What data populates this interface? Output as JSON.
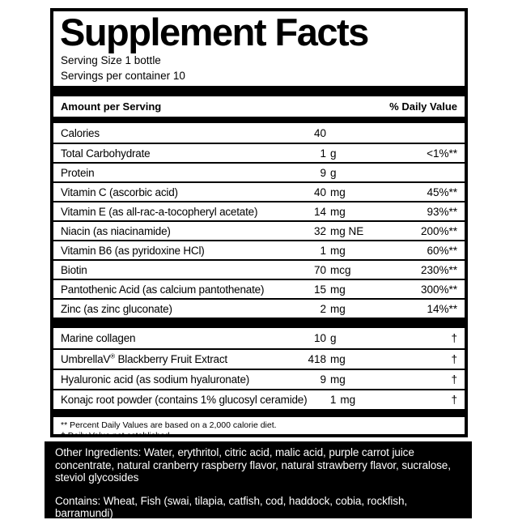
{
  "label": {
    "title": "Supplement Facts",
    "serving_size": "Serving Size 1 bottle",
    "servings_per_container": "Servings per container 10",
    "header": {
      "amount_col": "Amount per Serving",
      "dv_col": "% Daily Value"
    },
    "main_rows": [
      {
        "name": "Calories",
        "amount": "40",
        "unit": "",
        "dv": ""
      },
      {
        "name": "Total Carbohydrate",
        "amount": "1",
        "unit": "g",
        "dv": "<1%**"
      },
      {
        "name": "Protein",
        "amount": "9",
        "unit": "g",
        "dv": ""
      },
      {
        "name": "Vitamin C (ascorbic acid)",
        "amount": "40",
        "unit": "mg",
        "dv": "45%**"
      },
      {
        "name": "Vitamin E (as all-rac-a-tocopheryl acetate)",
        "amount": "14",
        "unit": "mg",
        "dv": "93%**"
      },
      {
        "name": "Niacin (as niacinamide)",
        "amount": "32",
        "unit": "mg NE",
        "dv": "200%**"
      },
      {
        "name": "Vitamin B6 (as pyridoxine HCl)",
        "amount": "1",
        "unit": "mg",
        "dv": "60%**"
      },
      {
        "name": "Biotin",
        "amount": "70",
        "unit": "mcg",
        "dv": "230%**"
      },
      {
        "name": "Pantothenic Acid (as calcium pantothenate)",
        "amount": "15",
        "unit": "mg",
        "dv": "300%**"
      },
      {
        "name": "Zinc (as zinc gluconate)",
        "amount": "2",
        "unit": "mg",
        "dv": "14%**"
      }
    ],
    "blend_rows": [
      {
        "name": "Marine collagen",
        "amount": "10",
        "unit": "g",
        "dv": "†"
      },
      {
        "name": "UmbrellaV® Blackberry Fruit Extract",
        "amount": "418",
        "unit": "mg",
        "dv": "†"
      },
      {
        "name": "Hyaluronic acid (as sodium hyaluronate)",
        "amount": "9",
        "unit": "mg",
        "dv": "†"
      },
      {
        "name": "Konajc root powder (contains 1% glucosyl ceramide)",
        "amount": "1",
        "unit": "mg",
        "dv": "†"
      }
    ],
    "footnotes": [
      "** Percent Daily Values are based on a 2,000 calorie diet.",
      "† Daily Value not established."
    ]
  },
  "bottom_panel": {
    "other_ingredients": "Other Ingredients: Water, erythritol, citric acid, malic acid, purple carrot juice concentrate, natural cranberry raspberry flavor, natural strawberry flavor, sucralose, steviol glycosides",
    "contains": "Contains: Wheat, Fish (swai, tilapia, catfish, cod, haddock, cobia, rockfish, barramundi)"
  },
  "colors": {
    "ink": "#000000",
    "paper": "#ffffff",
    "panel_bg": "#000000",
    "panel_text": "#ffffff"
  }
}
